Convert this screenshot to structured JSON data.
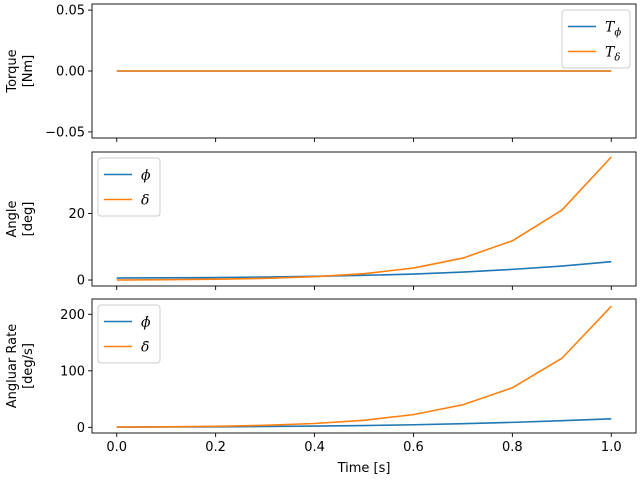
{
  "chart_data": [
    {
      "type": "line",
      "panel": "torque",
      "ylabel_lines": [
        "Torque",
        "[Nm]"
      ],
      "xlim": [
        -0.05,
        1.05
      ],
      "ylim": [
        -0.055,
        0.055
      ],
      "yticks": [
        -0.05,
        0.0,
        0.05
      ],
      "ytick_labels": [
        "−0.05",
        "0.00",
        "0.05"
      ],
      "xticks": [
        0.0,
        0.2,
        0.4,
        0.6,
        0.8,
        1.0
      ],
      "show_xtick_labels": false,
      "legend_position": "top-right",
      "series": [
        {
          "name": "T_ϕ",
          "legend_main": "T",
          "legend_sub": "ϕ",
          "color": "#1f77b4",
          "x": [
            0.0,
            0.2,
            0.4,
            0.6,
            0.8,
            1.0
          ],
          "y": [
            0,
            0,
            0,
            0,
            0,
            0
          ]
        },
        {
          "name": "T_δ",
          "legend_main": "T",
          "legend_sub": "δ",
          "color": "#ff7f0e",
          "x": [
            0.0,
            0.2,
            0.4,
            0.6,
            0.8,
            1.0
          ],
          "y": [
            0,
            0,
            0,
            0,
            0,
            0
          ]
        }
      ]
    },
    {
      "type": "line",
      "panel": "angle",
      "ylabel_lines": [
        "Angle",
        "[deg]"
      ],
      "xlim": [
        -0.05,
        1.05
      ],
      "ylim": [
        -1.8,
        38.5
      ],
      "yticks": [
        0,
        20
      ],
      "ytick_labels": [
        "0",
        "20"
      ],
      "xticks": [
        0.0,
        0.2,
        0.4,
        0.6,
        0.8,
        1.0
      ],
      "show_xtick_labels": false,
      "legend_position": "top-left",
      "series": [
        {
          "name": "ϕ",
          "legend_main": "ϕ",
          "legend_sub": "",
          "color": "#1f77b4",
          "x": [
            0.0,
            0.1,
            0.2,
            0.3,
            0.4,
            0.5,
            0.6,
            0.7,
            0.8,
            0.9,
            1.0
          ],
          "y": [
            0.6,
            0.65,
            0.75,
            0.9,
            1.1,
            1.4,
            1.8,
            2.4,
            3.2,
            4.2,
            5.5
          ]
        },
        {
          "name": "δ",
          "legend_main": "δ",
          "legend_sub": "",
          "color": "#ff7f0e",
          "x": [
            0.0,
            0.1,
            0.2,
            0.3,
            0.4,
            0.5,
            0.6,
            0.7,
            0.8,
            0.9,
            1.0
          ],
          "y": [
            0.0,
            0.1,
            0.25,
            0.5,
            1.0,
            1.9,
            3.6,
            6.6,
            11.8,
            21.0,
            37.0
          ]
        }
      ]
    },
    {
      "type": "line",
      "panel": "rate",
      "ylabel_lines": [
        "Angluar Rate",
        "[deg/s]"
      ],
      "xlabel": "Time [s]",
      "xlim": [
        -0.05,
        1.05
      ],
      "ylim": [
        -10,
        227
      ],
      "yticks": [
        0,
        100,
        200
      ],
      "ytick_labels": [
        "0",
        "100",
        "200"
      ],
      "xticks": [
        0.0,
        0.2,
        0.4,
        0.6,
        0.8,
        1.0
      ],
      "xtick_labels": [
        "0.0",
        "0.2",
        "0.4",
        "0.6",
        "0.8",
        "1.0"
      ],
      "show_xtick_labels": true,
      "legend_position": "top-left",
      "series": [
        {
          "name": "ϕ̇",
          "legend_main": "ϕ̇",
          "legend_sub": "",
          "color": "#1f77b4",
          "x": [
            0.0,
            0.1,
            0.2,
            0.3,
            0.4,
            0.5,
            0.6,
            0.7,
            0.8,
            0.9,
            1.0
          ],
          "y": [
            0.5,
            0.7,
            1.0,
            1.5,
            2.2,
            3.2,
            4.6,
            6.4,
            8.8,
            11.8,
            15.0
          ]
        },
        {
          "name": "δ̇",
          "legend_main": "δ̇",
          "legend_sub": "",
          "color": "#ff7f0e",
          "x": [
            0.0,
            0.1,
            0.2,
            0.3,
            0.4,
            0.5,
            0.6,
            0.7,
            0.8,
            0.9,
            1.0
          ],
          "y": [
            0.5,
            0.9,
            1.8,
            3.6,
            6.8,
            12.5,
            22.5,
            40.0,
            70.0,
            122.0,
            214.0
          ]
        }
      ]
    }
  ]
}
